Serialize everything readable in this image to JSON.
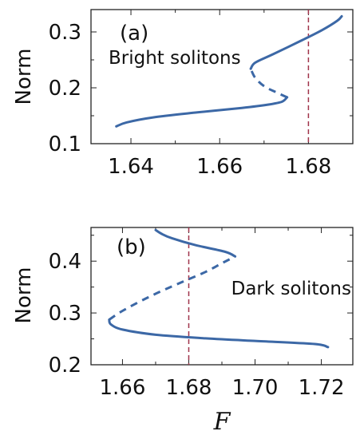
{
  "colors": {
    "curve": "#3c68a6",
    "reference_line": "#a0344b",
    "axes": "#222222"
  },
  "xlabel": "F",
  "chart_data": [
    {
      "type": "line",
      "panel_label": "(a)",
      "annotation": "Bright solitons",
      "ylabel": "Norm",
      "xlim": [
        1.631,
        1.69
      ],
      "ylim": [
        0.1,
        0.34
      ],
      "xticks": [
        1.64,
        1.66,
        1.68
      ],
      "xtick_labels": [
        "1.64",
        "1.66",
        "1.68"
      ],
      "yticks": [
        0.1,
        0.2,
        0.3
      ],
      "ytick_labels": [
        "0.1",
        "0.2",
        "0.3"
      ],
      "reference_line_x": 1.68,
      "series": [
        {
          "style": "solid",
          "x": [
            1.6367,
            1.639,
            1.645,
            1.655,
            1.665,
            1.671,
            1.674,
            1.6752
          ],
          "y": [
            0.131,
            0.138,
            0.147,
            0.156,
            0.164,
            0.17,
            0.175,
            0.183
          ]
        },
        {
          "style": "dashed",
          "x": [
            1.6752,
            1.673,
            1.67,
            1.668,
            1.667
          ],
          "y": [
            0.183,
            0.191,
            0.203,
            0.218,
            0.234
          ]
        },
        {
          "style": "solid",
          "x": [
            1.667,
            1.668,
            1.672,
            1.678,
            1.683,
            1.6865,
            1.6875
          ],
          "y": [
            0.234,
            0.245,
            0.26,
            0.283,
            0.303,
            0.32,
            0.328
          ]
        }
      ]
    },
    {
      "type": "line",
      "panel_label": "(b)",
      "annotation": "Dark solitons",
      "ylabel": "Norm",
      "xlim": [
        1.6505,
        1.7295
      ],
      "ylim": [
        0.2,
        0.465
      ],
      "xticks": [
        1.66,
        1.68,
        1.7,
        1.72
      ],
      "xtick_labels": [
        "1.66",
        "1.68",
        "1.70",
        "1.72"
      ],
      "yticks": [
        0.2,
        0.3,
        0.4
      ],
      "ytick_labels": [
        "0.2",
        "0.3",
        "0.4"
      ],
      "reference_line_x": 1.68,
      "series": [
        {
          "style": "solid",
          "x": [
            1.722,
            1.718,
            1.7,
            1.685,
            1.67,
            1.66,
            1.6565,
            1.656
          ],
          "y": [
            0.234,
            0.24,
            0.246,
            0.251,
            0.258,
            0.268,
            0.278,
            0.287
          ]
        },
        {
          "style": "dashed",
          "x": [
            1.656,
            1.66,
            1.668,
            1.677,
            1.685,
            1.69,
            1.694
          ],
          "y": [
            0.287,
            0.304,
            0.331,
            0.357,
            0.379,
            0.396,
            0.409
          ]
        },
        {
          "style": "solid",
          "x": [
            1.694,
            1.691,
            1.682,
            1.675,
            1.672,
            1.67
          ],
          "y": [
            0.409,
            0.418,
            0.431,
            0.444,
            0.452,
            0.46
          ]
        }
      ]
    }
  ]
}
